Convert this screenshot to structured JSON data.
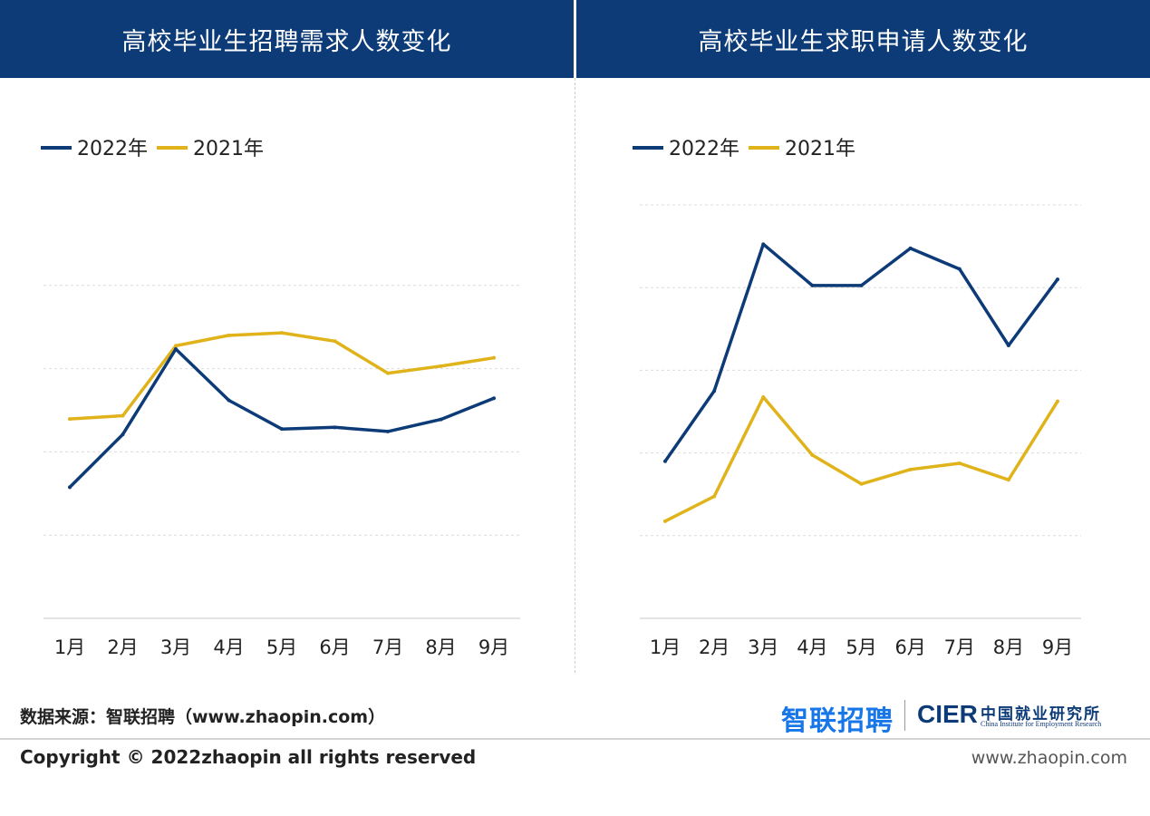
{
  "header": {
    "left_title": "高校毕业生招聘需求人数变化",
    "right_title": "高校毕业生求职申请人数变化"
  },
  "colors": {
    "series_2022": "#0c3b78",
    "series_2021": "#e0b31a",
    "header_bg": "#0c3b78"
  },
  "chart_data": [
    {
      "type": "line",
      "title": "高校毕业生招聘需求人数变化",
      "categories": [
        "1月",
        "2月",
        "3月",
        "4月",
        "5月",
        "6月",
        "7月",
        "8月",
        "9月"
      ],
      "ylim": [
        0,
        100
      ],
      "yticks": [
        0,
        20,
        40,
        60,
        80
      ],
      "grid": true,
      "show_y_labels": false,
      "legend": "top-left",
      "series": [
        {
          "name": "2022年",
          "color": "#0c3b78",
          "values": [
            31.5,
            44.2,
            64.7,
            52.4,
            45.5,
            45.9,
            44.9,
            47.8,
            52.9
          ]
        },
        {
          "name": "2021年",
          "color": "#e0b31a",
          "values": [
            47.9,
            48.7,
            65.5,
            68.0,
            68.6,
            66.6,
            58.9,
            60.6,
            62.6
          ]
        }
      ]
    },
    {
      "type": "line",
      "title": "高校毕业生求职申请人数变化",
      "categories": [
        "1月",
        "2月",
        "3月",
        "4月",
        "5月",
        "6月",
        "7月",
        "8月",
        "9月"
      ],
      "ylim": [
        0,
        100
      ],
      "yticks": [
        0,
        20,
        40,
        60,
        80,
        100
      ],
      "grid": true,
      "show_y_labels": false,
      "legend": "top-left",
      "series": [
        {
          "name": "2022年",
          "color": "#0c3b78",
          "values": [
            38.0,
            55.0,
            90.5,
            80.5,
            80.5,
            89.5,
            84.5,
            66.0,
            82.0
          ]
        },
        {
          "name": "2021年",
          "color": "#e0b31a",
          "values": [
            23.5,
            29.5,
            53.5,
            39.5,
            32.5,
            36.0,
            37.5,
            33.5,
            52.5
          ]
        }
      ]
    }
  ],
  "footer": {
    "source": "数据来源：智联招聘（www.zhaopin.com）",
    "logo_zhaopin": "智联招聘",
    "logo_cier": "CIER",
    "logo_cier_cn": "中国就业研究所",
    "logo_cier_en": "China Institute for Employment Research",
    "copyright": "Copyright ©  2022zhaopin all rights reserved",
    "website": "www.zhaopin.com"
  }
}
